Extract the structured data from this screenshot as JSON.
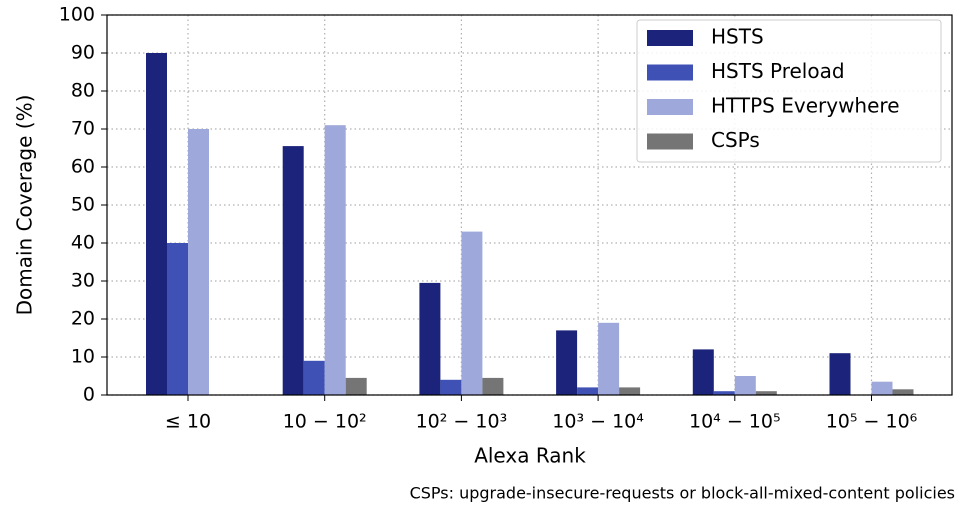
{
  "chart_data": {
    "type": "bar",
    "x_label": "Alexa Rank",
    "y_label": "Domain Coverage (%)",
    "note": "CSPs: upgrade-insecure-requests or block-all-mixed-content policies",
    "categories": [
      "≤ 10",
      "10 − 10²",
      "10² − 10³",
      "10³ − 10⁴",
      "10⁴ − 10⁵",
      "10⁵ − 10⁶"
    ],
    "series": [
      {
        "name": "HSTS",
        "color": "#1b237a",
        "values": [
          90,
          65.5,
          29.5,
          17,
          12,
          11
        ]
      },
      {
        "name": "HSTS Preload",
        "color": "#3f51b5",
        "values": [
          40,
          9,
          4,
          2,
          1,
          0
        ]
      },
      {
        "name": "HTTPS Everywhere",
        "color": "#9fa8da",
        "values": [
          70,
          71,
          43,
          19,
          5,
          3.5
        ]
      },
      {
        "name": "CSPs",
        "color": "#757575",
        "values": [
          0,
          4.5,
          4.5,
          2,
          1,
          1.5
        ]
      }
    ],
    "ylim": [
      0,
      100
    ],
    "yticks": [
      0,
      10,
      20,
      30,
      40,
      50,
      60,
      70,
      80,
      90,
      100
    ],
    "grid": true,
    "legend": "upper right"
  }
}
